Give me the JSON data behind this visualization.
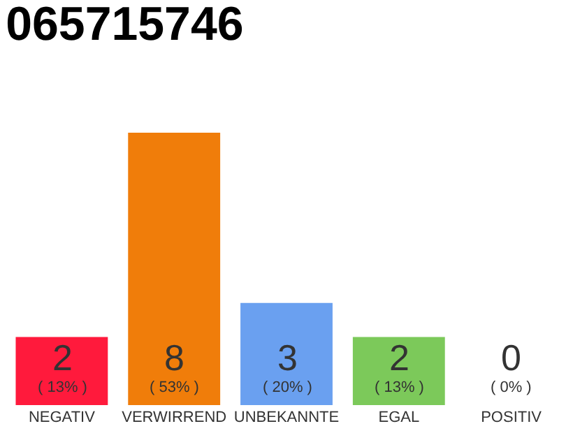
{
  "chart_data": {
    "type": "bar",
    "title": "065715746",
    "categories": [
      "NEGATIV",
      "VERWIRREND",
      "UNBEKANNTE",
      "EGAL",
      "POSITIV"
    ],
    "values": [
      2,
      8,
      3,
      2,
      0
    ],
    "colors": [
      "#ff1a3c",
      "#f07d0a",
      "#6aa0f0",
      "#7cc95a",
      "#d0d0d0"
    ],
    "value_labels": [
      "2\n( 13% )",
      "8\n( 53% )",
      "3\n( 20% )",
      "2\n( 13% )",
      "0\n( 0% )"
    ]
  }
}
